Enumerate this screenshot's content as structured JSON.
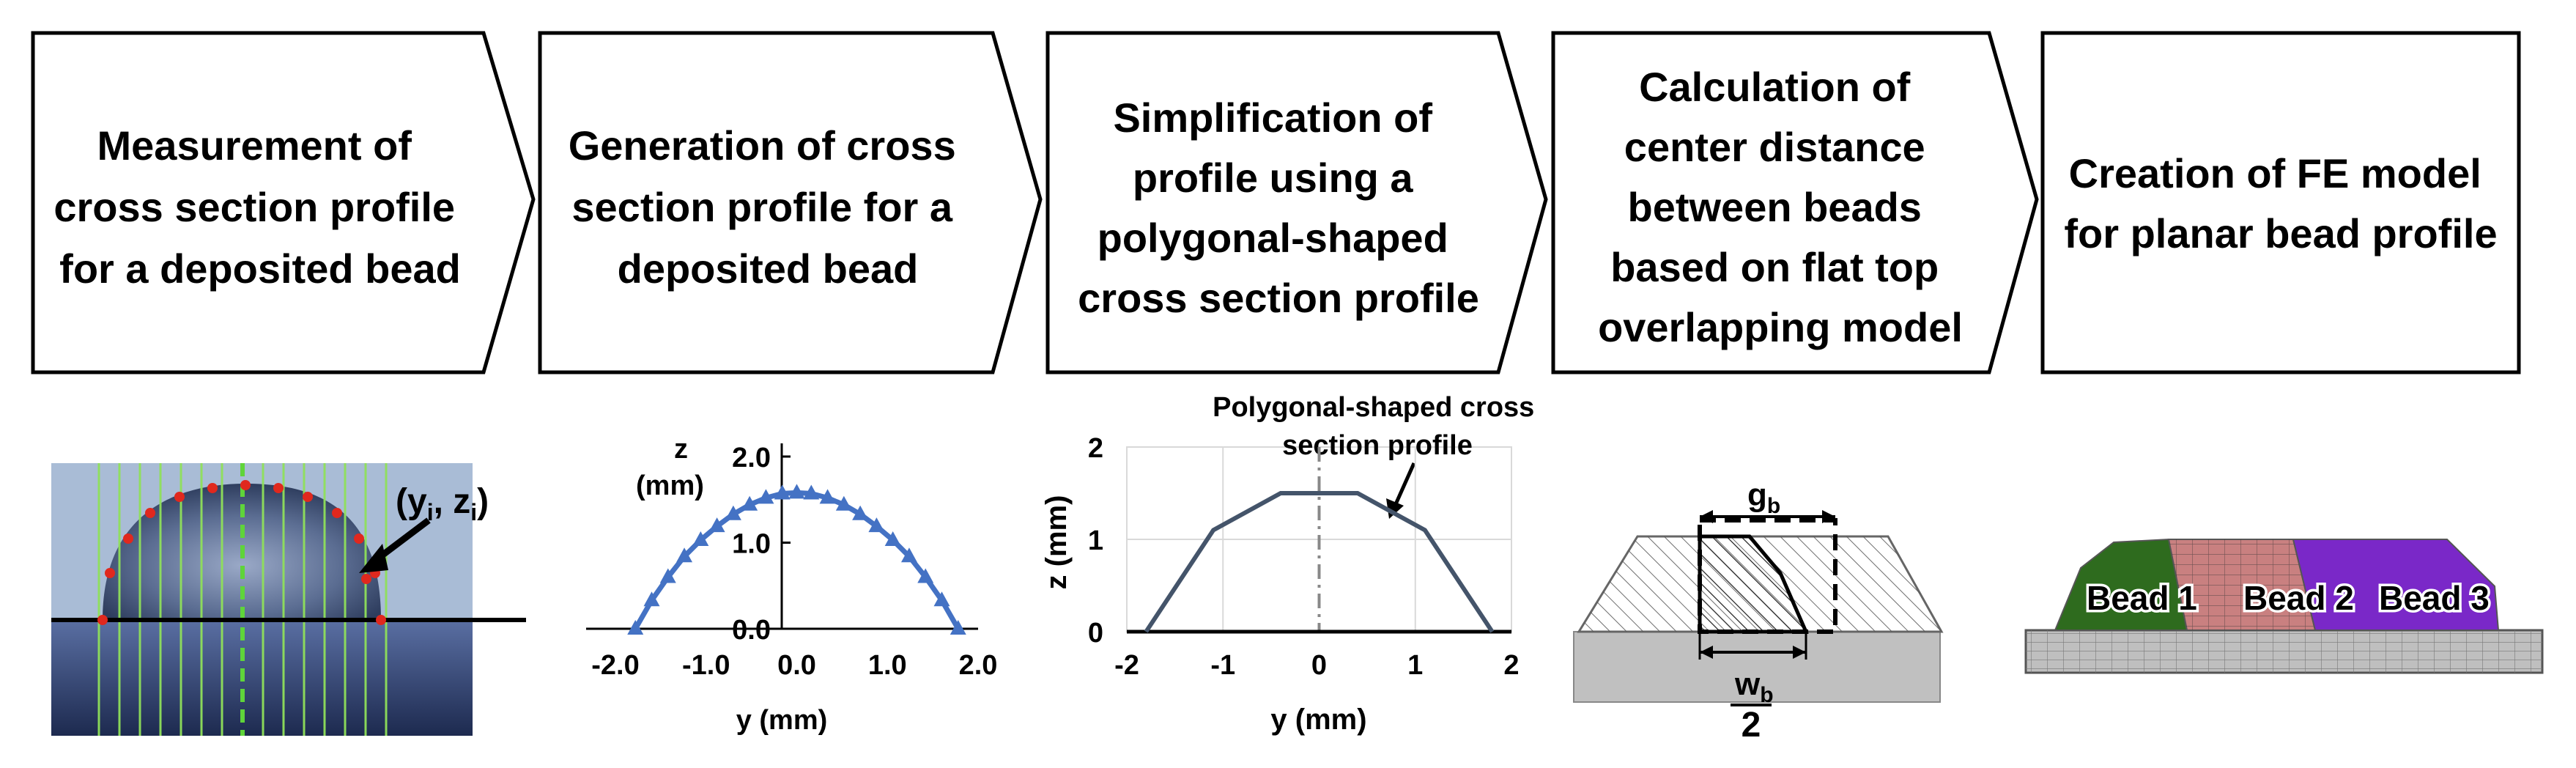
{
  "steps": [
    {
      "lines": [
        "Measurement of",
        "cross section profile",
        "for a deposited bead"
      ]
    },
    {
      "lines": [
        "Generation of cross",
        "section profile for a",
        "deposited bead"
      ]
    },
    {
      "lines": [
        "Simplification of",
        "profile using a",
        "polygonal-shaped",
        "cross section profile"
      ]
    },
    {
      "lines": [
        "Calculation of",
        "center distance",
        "between beads",
        "based on flat top",
        "overlapping model"
      ]
    },
    {
      "lines": [
        "Creation of FE model",
        "for planar bead profile"
      ]
    }
  ],
  "photo": {
    "annotation": "(y",
    "annotation_sub_i": "i",
    "annotation_mid": ", z",
    "annotation_sub_i2": "i",
    "annotation_close": ")"
  },
  "chart_data": [
    {
      "type": "scatter",
      "title": "",
      "xlabel": "y (mm)",
      "ylabel": "z",
      "ylabel_unit": "(mm)",
      "xlim": [
        -2.0,
        2.0
      ],
      "ylim": [
        0.0,
        2.0
      ],
      "x_ticks": [
        "-2.0",
        "-1.0",
        "0.0",
        "1.0",
        "2.0"
      ],
      "y_ticks": [
        "0.0",
        "1.0",
        "2.0"
      ],
      "series": [
        {
          "name": "cross section profile",
          "x": [
            -1.78,
            -1.6,
            -1.42,
            -1.24,
            -1.06,
            -0.88,
            -0.7,
            -0.52,
            -0.34,
            -0.16,
            0.0,
            0.16,
            0.34,
            0.52,
            0.7,
            0.88,
            1.06,
            1.24,
            1.42,
            1.6,
            1.78
          ],
          "y": [
            0.0,
            0.33,
            0.6,
            0.84,
            1.03,
            1.19,
            1.33,
            1.44,
            1.52,
            1.57,
            1.58,
            1.57,
            1.52,
            1.44,
            1.33,
            1.19,
            1.03,
            0.84,
            0.6,
            0.33,
            0.0
          ]
        }
      ]
    },
    {
      "type": "line",
      "title": "",
      "xlabel": "y (mm)",
      "ylabel": "z (mm)",
      "xlim": [
        -2,
        2
      ],
      "ylim": [
        0,
        2
      ],
      "x_ticks": [
        "-2",
        "-1",
        "0",
        "1",
        "2"
      ],
      "y_ticks": [
        "0",
        "1",
        "2"
      ],
      "annotation_lines": [
        "Polygonal-shaped cross",
        "section profile"
      ],
      "series": [
        {
          "name": "Polygonal-shaped cross section profile",
          "x": [
            -1.8,
            -1.1,
            -0.4,
            0.4,
            1.1,
            1.8
          ],
          "y": [
            0,
            1.1,
            1.5,
            1.5,
            1.1,
            0
          ]
        }
      ]
    }
  ],
  "overlap_model": {
    "label_gb": "g",
    "label_gb_sub": "b",
    "label_wb": "w",
    "label_wb_sub": "b",
    "label_denominator": "2"
  },
  "fe_model": {
    "beads": [
      "Bead 1",
      "Bead 2",
      "Bead 3"
    ]
  },
  "colors": {
    "series_blue": "#4472C4",
    "polygon_line": "#44546A",
    "bead1": "#2E6B1E",
    "bead2": "#C98080",
    "bead3": "#7A28C8",
    "substrate": "#C0C0C0"
  }
}
